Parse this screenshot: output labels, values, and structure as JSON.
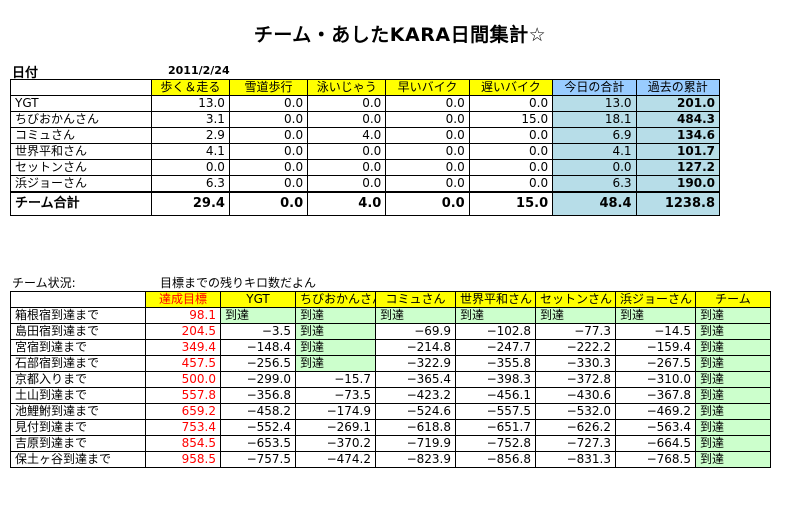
{
  "title": "チーム・あしたKARA日間集計☆",
  "date_label": "日付",
  "date_value": "2011/2/24",
  "daily": {
    "headers": [
      "",
      "歩く＆走る",
      "雪道歩行",
      "泳いじゃう",
      "早いバイク",
      "遅いバイク",
      "今日の合計",
      "過去の累計"
    ],
    "rows": [
      [
        "YGT",
        "13.0",
        "0.0",
        "0.0",
        "0.0",
        "0.0",
        "13.0",
        "201.0"
      ],
      [
        "ちびおかんさん",
        "3.1",
        "0.0",
        "0.0",
        "0.0",
        "15.0",
        "18.1",
        "484.3"
      ],
      [
        "コミュさん",
        "2.9",
        "0.0",
        "4.0",
        "0.0",
        "0.0",
        "6.9",
        "134.6"
      ],
      [
        "世界平和さん",
        "4.1",
        "0.0",
        "0.0",
        "0.0",
        "0.0",
        "4.1",
        "101.7"
      ],
      [
        "セットンさん",
        "0.0",
        "0.0",
        "0.0",
        "0.0",
        "0.0",
        "0.0",
        "127.2"
      ],
      [
        "浜ジョーさん",
        "6.3",
        "0.0",
        "0.0",
        "0.0",
        "0.0",
        "6.3",
        "190.0"
      ]
    ],
    "total": [
      "チーム合計",
      "29.4",
      "0.0",
      "4.0",
      "0.0",
      "15.0",
      "48.4",
      "1238.8"
    ]
  },
  "status_label": "チーム状況:",
  "status_note": "目標までの残りキロ数だよん",
  "goals": {
    "headers": [
      "",
      "達成目標",
      "YGT",
      "ちびおかんさん",
      "コミュさん",
      "世界平和さん",
      "セットンさん",
      "浜ジョーさん",
      "チーム"
    ],
    "rows": [
      [
        "箱根宿到達まで",
        "98.1",
        "到達",
        "到達",
        "到達",
        "到達",
        "到達",
        "到達",
        "到達"
      ],
      [
        "島田宿到達まで",
        "204.5",
        "−3.5",
        "到達",
        "−69.9",
        "−102.8",
        "−77.3",
        "−14.5",
        "到達"
      ],
      [
        "宮宿到達まで",
        "349.4",
        "−148.4",
        "到達",
        "−214.8",
        "−247.7",
        "−222.2",
        "−159.4",
        "到達"
      ],
      [
        "石部宿到達まで",
        "457.5",
        "−256.5",
        "到達",
        "−322.9",
        "−355.8",
        "−330.3",
        "−267.5",
        "到達"
      ],
      [
        "京都入りまで",
        "500.0",
        "−299.0",
        "−15.7",
        "−365.4",
        "−398.3",
        "−372.8",
        "−310.0",
        "到達"
      ],
      [
        "土山到達まで",
        "557.8",
        "−356.8",
        "−73.5",
        "−423.2",
        "−456.1",
        "−430.6",
        "−367.8",
        "到達"
      ],
      [
        "池鯉鮒到達まで",
        "659.2",
        "−458.2",
        "−174.9",
        "−524.6",
        "−557.5",
        "−532.0",
        "−469.2",
        "到達"
      ],
      [
        "見付到達まで",
        "753.4",
        "−552.4",
        "−269.1",
        "−618.8",
        "−651.7",
        "−626.2",
        "−563.4",
        "到達"
      ],
      [
        "吉原到達まで",
        "854.5",
        "−653.5",
        "−370.2",
        "−719.9",
        "−752.8",
        "−727.3",
        "−664.5",
        "到達"
      ],
      [
        "保土ヶ谷到達まで",
        "958.5",
        "−757.5",
        "−474.2",
        "−823.9",
        "−856.8",
        "−831.3",
        "−768.5",
        "到達"
      ]
    ]
  },
  "colors": {
    "header_yellow": "#ffff00",
    "header_blue": "#99ccff",
    "cell_blue": "#b7dde8",
    "reached_green": "#ccffcc",
    "target_red": "#ff0000"
  }
}
